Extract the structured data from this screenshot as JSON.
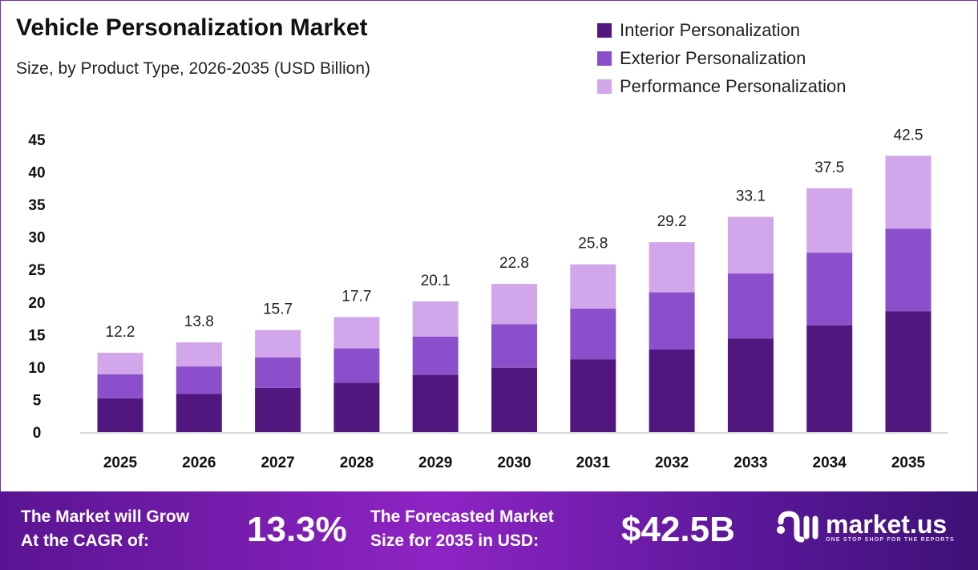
{
  "header": {
    "title": "Vehicle Personalization Market",
    "subtitle": "Size, by Product Type, 2026-2035 (USD Billion)"
  },
  "colors": {
    "interior": "#52167f",
    "exterior": "#8b4fcb",
    "performance": "#d1a6ea"
  },
  "chart_data": {
    "type": "bar",
    "stacked": true,
    "title": "Vehicle Personalization Market",
    "subtitle": "Size, by Product Type, 2026-2035 (USD Billion)",
    "categories": [
      "2025",
      "2026",
      "2027",
      "2028",
      "2029",
      "2030",
      "2031",
      "2032",
      "2033",
      "2034",
      "2035"
    ],
    "series": [
      {
        "name": "Interior Personalization",
        "values": [
          5.2,
          5.9,
          6.8,
          7.6,
          8.8,
          9.9,
          11.2,
          12.7,
          14.4,
          16.4,
          18.6
        ]
      },
      {
        "name": "Exterior Personalization",
        "values": [
          3.7,
          4.2,
          4.7,
          5.3,
          5.9,
          6.7,
          7.8,
          8.8,
          10.0,
          11.2,
          12.7
        ]
      },
      {
        "name": "Performance Personalization",
        "values": [
          3.3,
          3.7,
          4.2,
          4.8,
          5.4,
          6.2,
          6.8,
          7.7,
          8.7,
          9.9,
          11.2
        ]
      }
    ],
    "totals": [
      "12.2",
      "13.8",
      "15.7",
      "17.7",
      "20.1",
      "22.8",
      "25.8",
      "29.2",
      "33.1",
      "37.5",
      "42.5"
    ],
    "yticks": [
      "0",
      "5",
      "10",
      "15",
      "20",
      "25",
      "30",
      "35",
      "40",
      "45"
    ],
    "ylim": [
      0,
      45
    ],
    "grid": false,
    "legend": "top-right"
  },
  "footer": {
    "cagr_label_1": "The Market will Grow",
    "cagr_label_2": "At the CAGR of:",
    "cagr_value": "13.3%",
    "size_label_1": "The Forecasted Market",
    "size_label_2": "Size for 2035 in USD:",
    "size_value": "$42.5B",
    "logo_name": "market.us",
    "logo_tag": "ONE STOP SHOP FOR THE REPORTS"
  }
}
